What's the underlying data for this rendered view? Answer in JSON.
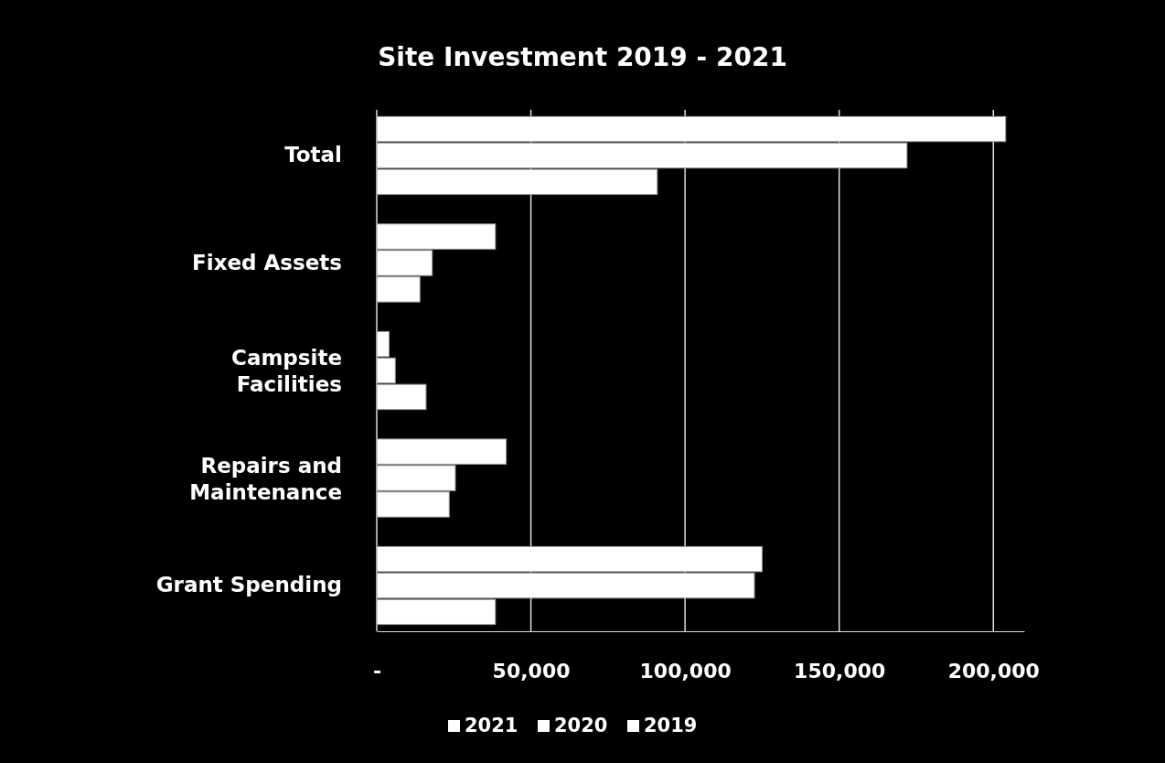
{
  "chart_data": {
    "type": "bar",
    "orientation": "horizontal",
    "title": "Site Investment 2019 - 2021",
    "categories": [
      "Total",
      "Fixed Assets",
      "Campsite Facilities",
      "Repairs and Maintenance",
      "Grant Spending"
    ],
    "series": [
      {
        "name": "2021",
        "color": "#ffffff",
        "values": [
          204000,
          38500,
          4000,
          42000,
          125000
        ]
      },
      {
        "name": "2020",
        "color": "#ffffff",
        "values": [
          172000,
          18000,
          6000,
          25500,
          122500
        ]
      },
      {
        "name": "2019",
        "color": "#ffffff",
        "values": [
          91000,
          14000,
          16000,
          23500,
          38500
        ]
      }
    ],
    "xlim": [
      0,
      210000
    ],
    "xticks": [
      {
        "value": 0,
        "label": "-"
      },
      {
        "value": 50000,
        "label": "50,000"
      },
      {
        "value": 100000,
        "label": "100,000"
      },
      {
        "value": 150000,
        "label": "150,000"
      },
      {
        "value": 200000,
        "label": "200,000"
      }
    ],
    "grid": "x",
    "legend": "bottom"
  }
}
